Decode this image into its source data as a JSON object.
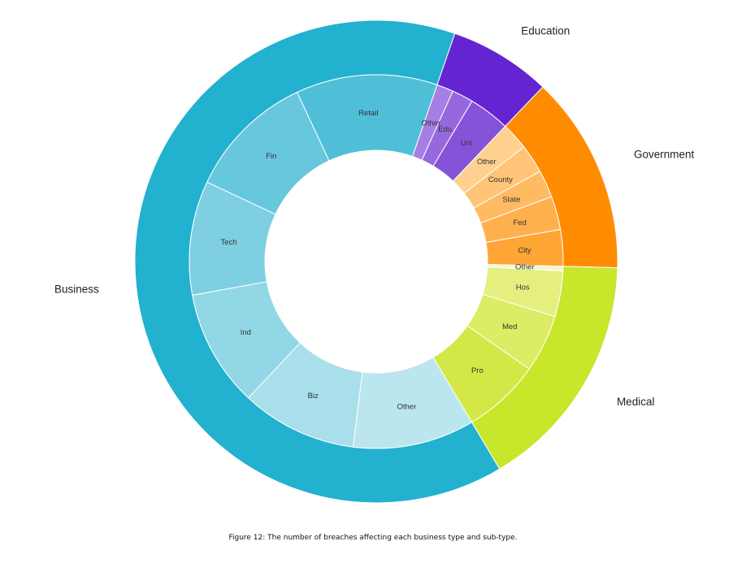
{
  "caption": "Figure 12: The number of breaches affecting each business type and sub-type.",
  "chart_data": {
    "type": "sunburst",
    "title": "",
    "start_angle_deg": 19,
    "direction": "clockwise",
    "categories": [
      {
        "name": "Education",
        "color": "#6524d1",
        "children": [
          {
            "name": "Other",
            "value": 11,
            "color": "#a67fe6"
          },
          {
            "name": "Edu",
            "value": 14,
            "color": "#9569dd"
          },
          {
            "name": "Uni",
            "value": 27,
            "color": "#8453d7"
          }
        ]
      },
      {
        "name": "Government",
        "color": "#ff8c00",
        "children": [
          {
            "name": "Other",
            "value": 18,
            "color": "#ffd090"
          },
          {
            "name": "County",
            "value": 19,
            "color": "#ffc478"
          },
          {
            "name": "State",
            "value": 18,
            "color": "#ffbb64"
          },
          {
            "name": "Fed",
            "value": 22,
            "color": "#ffb04e"
          },
          {
            "name": "City",
            "value": 24,
            "color": "#ffa535"
          }
        ]
      },
      {
        "name": "Medical",
        "color": "#c8e62a",
        "children": [
          {
            "name": "Other",
            "value": 3,
            "color": "#f3f7c8"
          },
          {
            "name": "Hos",
            "value": 30,
            "color": "#e4ef80"
          },
          {
            "name": "Med",
            "value": 38,
            "color": "#dcec64"
          },
          {
            "name": "Pro",
            "value": 51,
            "color": "#d3e846"
          }
        ]
      },
      {
        "name": "Business",
        "color": "#22b1cf",
        "children": [
          {
            "name": "Other",
            "value": 80,
            "color": "#bce6ef"
          },
          {
            "name": "Biz",
            "value": 76,
            "color": "#a8dfeb"
          },
          {
            "name": "Ind",
            "value": 77,
            "color": "#92d7e6"
          },
          {
            "name": "Tech",
            "value": 75,
            "color": "#7dcfe1"
          },
          {
            "name": "Fin",
            "value": 84,
            "color": "#67c7dc"
          },
          {
            "name": "Retail",
            "value": 93,
            "color": "#4fbfd7"
          }
        ]
      }
    ]
  }
}
